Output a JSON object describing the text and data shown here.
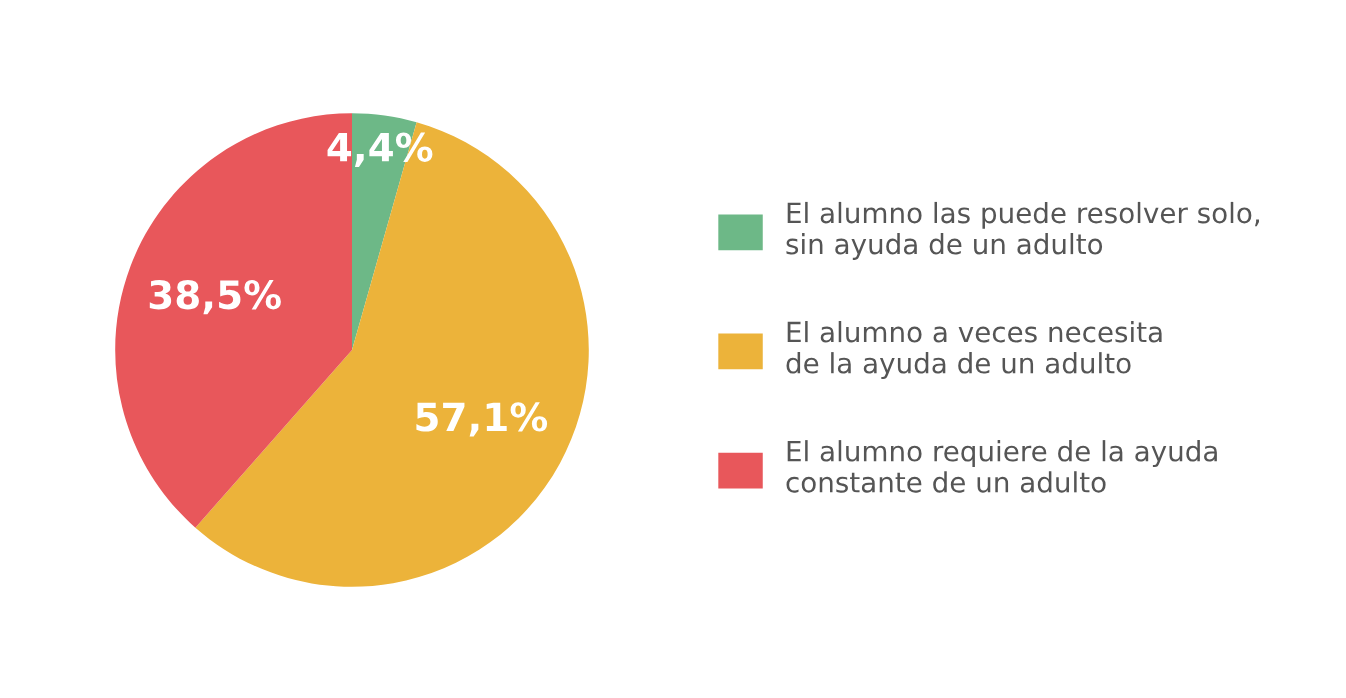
{
  "chart_data": {
    "type": "pie",
    "categories": [
      "El alumno las puede resolver solo,\nsin ayuda de un adulto",
      "El alumno a veces necesita\nde la ayuda de un adulto",
      "El alumno requiere de la ayuda\nconstante de un adulto"
    ],
    "values": [
      4.4,
      57.1,
      38.5
    ],
    "value_labels": [
      "4,4%",
      "57,1%",
      "38,5%"
    ],
    "colors": [
      "#6db887",
      "#ecb33a",
      "#e8575b"
    ],
    "legend": "right"
  }
}
